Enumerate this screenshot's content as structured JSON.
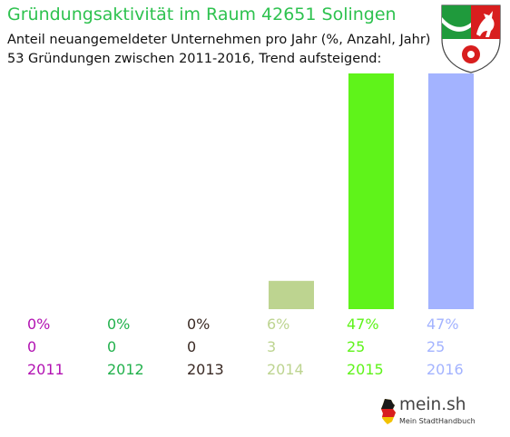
{
  "header": {
    "title": "Gründungsaktivität im Raum 42651 Solingen",
    "subtitle": "Anteil neuangemeldeter Unternehmen pro Jahr (%, Anzahl, Jahr)",
    "summary": "53 Gründungen zwischen 2011-2016, Trend aufsteigend:"
  },
  "branding": {
    "crest_icon": "nrw-coat-of-arms-icon",
    "logo_name": "mein.sh",
    "logo_tagline": "Mein StadtHandbuch",
    "logo_icon": "germany-map-icon"
  },
  "chart_data": {
    "type": "bar",
    "categories": [
      "2011",
      "2012",
      "2013",
      "2014",
      "2015",
      "2016"
    ],
    "percent_labels": [
      "0%",
      "0%",
      "0%",
      "6%",
      "47%",
      "47%"
    ],
    "values": [
      0,
      0,
      0,
      3,
      25,
      25
    ],
    "percent_values": [
      0,
      0,
      0,
      6,
      47,
      47
    ],
    "colors": [
      "#b212b2",
      "#22b14c",
      "#3a2a24",
      "#bdd490",
      "#5ff31a",
      "#a3b3ff"
    ],
    "title": "Gründungsaktivität im Raum 42651 Solingen",
    "grid": false,
    "legend": "none"
  }
}
